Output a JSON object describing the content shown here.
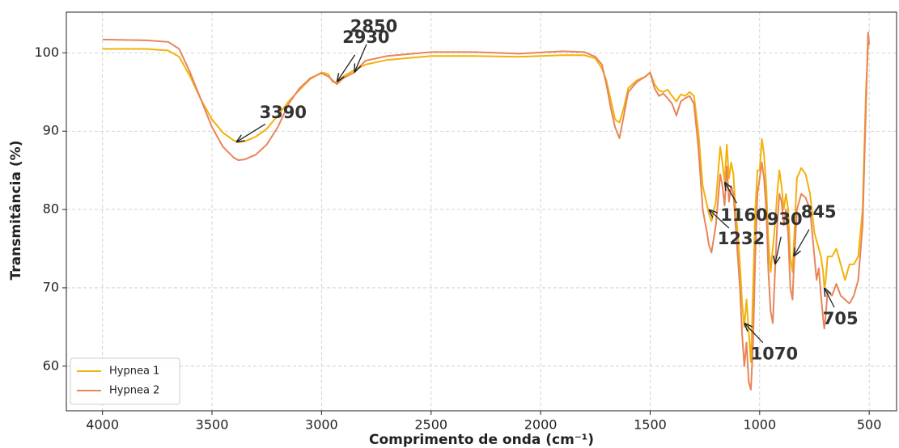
{
  "chart_data": {
    "type": "line",
    "xlabel": "Comprimento de onda (cm⁻¹)",
    "ylabel": "Transmitância (%)",
    "x": [
      4000,
      3800,
      3700,
      3650,
      3600,
      3550,
      3500,
      3450,
      3400,
      3380,
      3350,
      3300,
      3250,
      3200,
      3150,
      3100,
      3050,
      3000,
      2970,
      2950,
      2930,
      2900,
      2850,
      2800,
      2700,
      2500,
      2300,
      2100,
      1900,
      1800,
      1750,
      1720,
      1700,
      1680,
      1660,
      1640,
      1620,
      1600,
      1560,
      1520,
      1500,
      1480,
      1460,
      1440,
      1420,
      1400,
      1380,
      1360,
      1340,
      1320,
      1300,
      1280,
      1260,
      1240,
      1232,
      1220,
      1200,
      1180,
      1170,
      1160,
      1150,
      1140,
      1130,
      1120,
      1110,
      1100,
      1090,
      1080,
      1070,
      1060,
      1050,
      1040,
      1030,
      1020,
      1010,
      1000,
      990,
      980,
      970,
      960,
      950,
      940,
      930,
      920,
      910,
      900,
      890,
      880,
      870,
      860,
      850,
      845,
      830,
      810,
      790,
      770,
      750,
      740,
      730,
      720,
      710,
      705,
      700,
      690,
      670,
      650,
      630,
      610,
      590,
      570,
      550,
      530,
      515,
      505,
      500
    ],
    "series": [
      {
        "name": "Hypnea 1",
        "color": "#f2b20a",
        "values": [
          100.5,
          100.5,
          100.3,
          99.5,
          97,
          94,
          91.5,
          89.8,
          88.8,
          88.6,
          88.7,
          89.3,
          90.3,
          92,
          93.8,
          95.3,
          96.7,
          97.5,
          97.3,
          96.3,
          96.2,
          97,
          97.8,
          98.5,
          99.1,
          99.6,
          99.6,
          99.5,
          99.7,
          99.7,
          99.3,
          98,
          96.5,
          94,
          91.5,
          91.1,
          93,
          95.5,
          96.5,
          97,
          97.5,
          96,
          95.2,
          95,
          95.3,
          94.5,
          93.8,
          94.7,
          94.5,
          95,
          94.5,
          90,
          83,
          80.5,
          79.5,
          78.5,
          81,
          88,
          86,
          83.5,
          88.3,
          84,
          86,
          84.5,
          80,
          77,
          73,
          68,
          65,
          68.5,
          64.5,
          60.5,
          70,
          80,
          85,
          85,
          89,
          87,
          83,
          76,
          72,
          75,
          78,
          82,
          85,
          83,
          80,
          82,
          80,
          74,
          72,
          75,
          84,
          85.3,
          84.5,
          82,
          77,
          76,
          75,
          74,
          72,
          70,
          70.5,
          74,
          74,
          75,
          73,
          71,
          73,
          73,
          74,
          80,
          95,
          101,
          101
        ]
      },
      {
        "name": "Hypnea 2",
        "color": "#e8855a",
        "values": [
          101.7,
          101.6,
          101.4,
          100.5,
          97.5,
          94,
          90.5,
          88,
          86.6,
          86.3,
          86.4,
          87,
          88.3,
          90.5,
          93.5,
          95.5,
          96.8,
          97.4,
          97,
          96.5,
          96,
          96.8,
          97.5,
          99,
          99.6,
          100.1,
          100.1,
          99.9,
          100.2,
          100.1,
          99.5,
          98.5,
          96,
          93,
          90.5,
          89.1,
          92,
          95,
          96.3,
          97,
          97.5,
          95.5,
          94.5,
          94.8,
          94.2,
          93.5,
          92,
          93.8,
          94.2,
          94.5,
          93.5,
          88,
          80,
          77,
          75.5,
          74.5,
          78,
          84.5,
          83,
          80.5,
          85.5,
          81,
          83,
          82,
          78,
          74,
          70,
          64,
          60,
          63,
          58,
          57,
          63,
          74,
          82,
          84,
          86,
          84,
          80,
          72,
          67,
          65.5,
          72,
          78,
          82,
          81,
          78,
          80,
          77,
          70,
          68.5,
          72,
          80,
          82,
          81.5,
          80,
          74,
          71,
          72.5,
          69,
          66,
          64.8,
          66,
          69.5,
          69,
          70.5,
          69,
          68.5,
          68,
          69,
          71,
          78,
          93,
          102.6,
          101
        ]
      }
    ],
    "xlim": [
      4165,
      375
    ],
    "xticks": [
      4000,
      3500,
      3000,
      2500,
      2000,
      1500,
      1000,
      500
    ],
    "ylim": [
      54.3,
      105.2
    ],
    "yticks": [
      60,
      70,
      80,
      90,
      100
    ],
    "grid": true,
    "legend": "lower left",
    "annotations": [
      {
        "text": "3390",
        "x": 3390,
        "y": 88.6
      },
      {
        "text": "2930",
        "x": 2930,
        "y": 96.3
      },
      {
        "text": "2850",
        "x": 2850,
        "y": 97.5
      },
      {
        "text": "1232",
        "x": 1232,
        "y": 80
      },
      {
        "text": "1160",
        "x": 1160,
        "y": 83.5
      },
      {
        "text": "1070",
        "x": 1070,
        "y": 65.5
      },
      {
        "text": "930",
        "x": 930,
        "y": 73
      },
      {
        "text": "845",
        "x": 845,
        "y": 74
      },
      {
        "text": "705",
        "x": 705,
        "y": 70
      }
    ]
  }
}
